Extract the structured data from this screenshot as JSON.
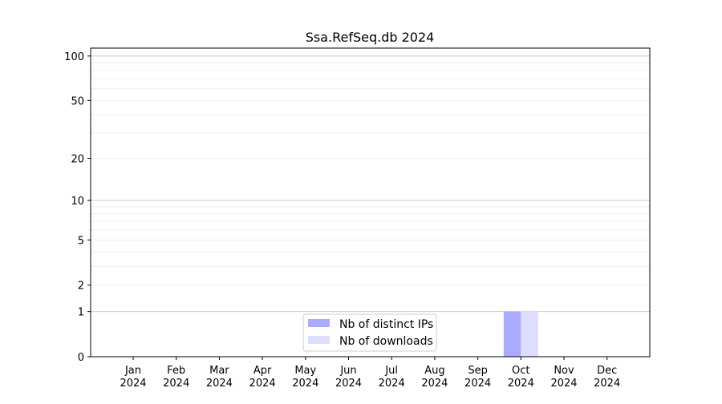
{
  "chart_data": {
    "type": "bar",
    "title": "Ssa.RefSeq.db 2024",
    "xlabel": "",
    "ylabel": "",
    "yscale": "log(1+y)",
    "ylim": [
      0,
      113
    ],
    "yticks": [
      0,
      1,
      2,
      5,
      10,
      20,
      50,
      100
    ],
    "grid": true,
    "categories": [
      "Jan\n2024",
      "Feb\n2024",
      "Mar\n2024",
      "Apr\n2024",
      "May\n2024",
      "Jun\n2024",
      "Jul\n2024",
      "Aug\n2024",
      "Sep\n2024",
      "Oct\n2024",
      "Nov\n2024",
      "Dec\n2024"
    ],
    "series": [
      {
        "name": "Nb of distinct IPs",
        "color": "#aaaaff",
        "values": [
          0,
          0,
          0,
          0,
          0,
          0,
          0,
          0,
          0,
          1,
          0,
          0
        ]
      },
      {
        "name": "Nb of downloads",
        "color": "#ddddff",
        "values": [
          0,
          0,
          0,
          0,
          0,
          0,
          0,
          0,
          0,
          1,
          0,
          0
        ]
      }
    ],
    "legend": "lower-center"
  }
}
